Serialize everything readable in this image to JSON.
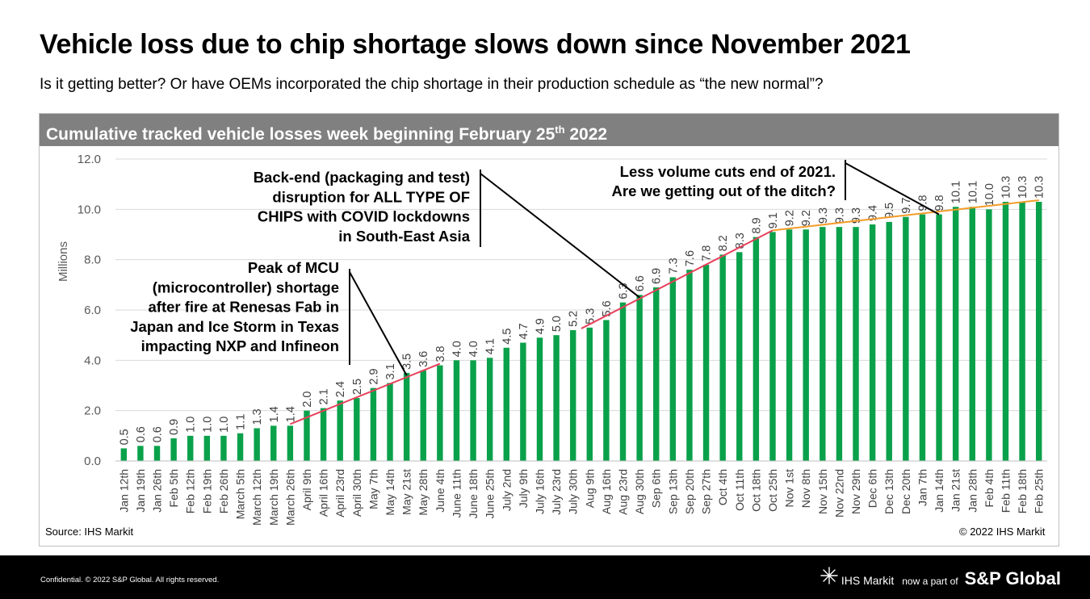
{
  "page": {
    "title": "Vehicle loss due to chip shortage slows down since November 2021",
    "subtitle": "Is it getting better? Or have OEMs incorporated the chip shortage in their production schedule as “the new normal”?",
    "panel_title_pre": "Cumulative tracked vehicle losses week beginning February 25",
    "panel_title_sup": "th",
    "panel_title_post": " 2022",
    "source": "Source: IHS Markit",
    "copyright": "© 2022 IHS Markit",
    "footer_confidential": "Confidential. © 2022 S&P Global. All rights reserved.",
    "footer_ihs": "IHS Markit",
    "footer_now_part": "now a part of",
    "footer_spg": "S&P Global"
  },
  "colors": {
    "bar": "#0aa14b",
    "red_trend": "#e8405a",
    "orange_trend": "#f39c2a",
    "header_bg": "#808080"
  },
  "chart_data": {
    "type": "bar",
    "ylabel": "Millions",
    "ylim": [
      0,
      12
    ],
    "yticks": [
      "0.0",
      "2.0",
      "4.0",
      "6.0",
      "8.0",
      "10.0",
      "12.0"
    ],
    "grid": true,
    "categories": [
      "Jan 12th",
      "Jan 19th",
      "Jan 26th",
      "Feb 5th",
      "Feb 12th",
      "Feb 19th",
      "Feb 26th",
      "March 5th",
      "March 12th",
      "March 19th",
      "March 26th",
      "April 9th",
      "April 16th",
      "April 23rd",
      "April 30th",
      "May 7th",
      "May 14th",
      "May 21st",
      "May 28th",
      "June 4th",
      "June 11th",
      "June 18th",
      "June 25th",
      "July 2nd",
      "July 9th",
      "July 16th",
      "July 23rd",
      "July 30th",
      "Aug 9th",
      "Aug 16th",
      "Aug 23rd",
      "Aug 30th",
      "Sep 6th",
      "Sep 13th",
      "Sep 20th",
      "Sep 27th",
      "Oct 4th",
      "Oct 11th",
      "Oct 18th",
      "Oct 25th",
      "Nov 1st",
      "Nov 8th",
      "Nov 15th",
      "Nov 22nd",
      "Nov 29th",
      "Dec 6th",
      "Dec 13th",
      "Dec 20th",
      "Jan 7th",
      "Jan 14th",
      "Jan 21st",
      "Jan 28th",
      "Feb 4th",
      "Feb 11th",
      "Feb 18th",
      "Feb 25th"
    ],
    "values": [
      0.5,
      0.6,
      0.6,
      0.9,
      1.0,
      1.0,
      1.0,
      1.1,
      1.3,
      1.4,
      1.4,
      2.0,
      2.1,
      2.4,
      2.5,
      2.9,
      3.1,
      3.5,
      3.6,
      3.8,
      4.0,
      4.0,
      4.1,
      4.5,
      4.7,
      4.9,
      5.0,
      5.2,
      5.3,
      5.6,
      6.3,
      6.6,
      6.9,
      7.3,
      7.6,
      7.8,
      8.2,
      8.3,
      8.9,
      9.1,
      9.2,
      9.2,
      9.3,
      9.3,
      9.3,
      9.4,
      9.5,
      9.7,
      9.8,
      9.8,
      10.1,
      10.1,
      10.0,
      10.3,
      10.3,
      10.3
    ],
    "data_labels": [
      "0.5",
      "0.6",
      "0.6",
      "0.9",
      "1.0",
      "1.0",
      "1.0",
      "1.1",
      "1.3",
      "1.4",
      "1.4",
      "2.0",
      "2.1",
      "2.4",
      "2.5",
      "2.9",
      "3.1",
      "3.5",
      "3.6",
      "3.8",
      "4.0",
      "4.0",
      "4.1",
      "4.5",
      "4.7",
      "4.9",
      "5.0",
      "5.2",
      "5.3",
      "5.6",
      "6.3",
      "6.6",
      "6.9",
      "7.3",
      "7.6",
      "7.8",
      "8.2",
      "8.3",
      "8.9",
      "9.1",
      "9.2",
      "9.2",
      "9.3",
      "9.3",
      "9.3",
      "9.4",
      "9.5",
      "9.7",
      "9.8",
      "9.8",
      "10.1",
      "10.1",
      "10.0",
      "10.3",
      "10.3",
      "10.3"
    ],
    "trend_lines": [
      {
        "color": "red",
        "from_index": 10,
        "from_value": 1.4,
        "to_index": 19,
        "to_value": 3.8
      },
      {
        "color": "red",
        "from_index": 27.5,
        "from_value": 5.2,
        "to_index": 39,
        "to_value": 9.1
      },
      {
        "color": "orange",
        "from_index": 39,
        "from_value": 9.1,
        "to_index": 55,
        "to_value": 10.3
      }
    ],
    "annotations": [
      {
        "lines": [
          "Peak of MCU",
          "(microcontroller) shortage",
          "after fire at Renesas Fab in",
          "Japan and Ice Storm in Texas",
          "impacting NXP and Infineon"
        ],
        "target_index": 17,
        "target_value": 3.4
      },
      {
        "lines": [
          "Back-end (packaging and test)",
          "disruption for ALL TYPE OF",
          "CHIPS with COVID lockdowns",
          "in South-East Asia"
        ],
        "target_index": 31,
        "target_value": 6.5
      },
      {
        "lines": [
          "Less volume cuts end of 2021.",
          "Are we getting out of the ditch?"
        ],
        "target_index": 49,
        "target_value": 9.8
      }
    ]
  }
}
